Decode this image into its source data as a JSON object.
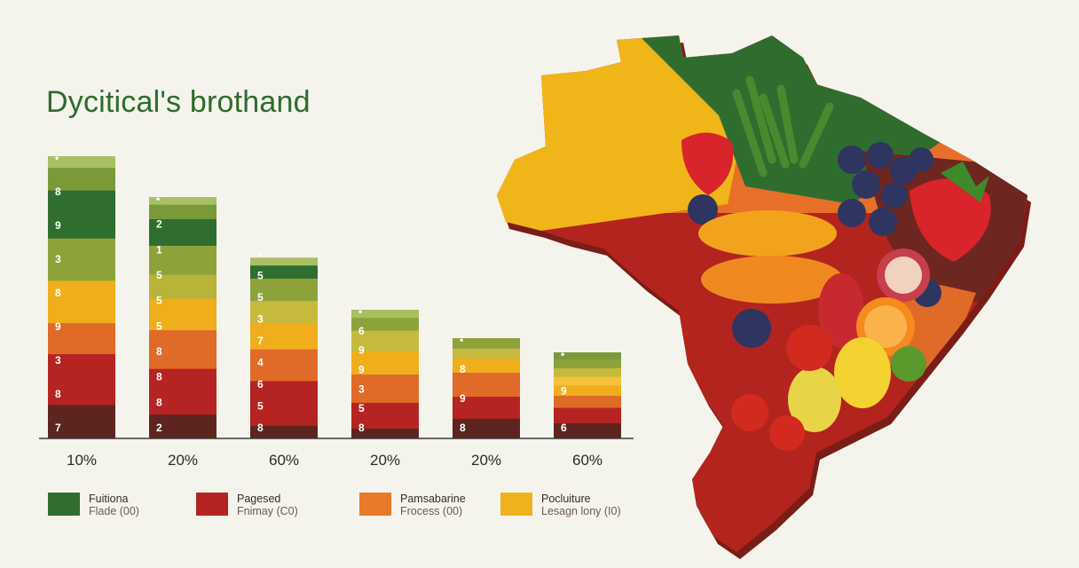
{
  "title": "Dycitical's brothand",
  "chart_data": {
    "type": "bar",
    "subtype": "stacked",
    "title": "Dycitical's brothand",
    "categories": [
      "10%",
      "20%",
      "60%",
      "20%",
      "20%",
      "60%"
    ],
    "bars": [
      {
        "label": "10%",
        "height": 318,
        "bands": [
          {
            "color": "#5c2520",
            "frac": 0.12
          },
          {
            "color": "#b52422",
            "frac": 0.18
          },
          {
            "color": "#e06a28",
            "frac": 0.11
          },
          {
            "color": "#f0ae1c",
            "frac": 0.15
          },
          {
            "color": "#8ea23c",
            "frac": 0.15
          },
          {
            "color": "#2f6e2f",
            "frac": 0.17
          },
          {
            "color": "#7a9a3a",
            "frac": 0.08
          },
          {
            "color": "#a8c062",
            "frac": 0.04
          }
        ],
        "marks": [
          "7",
          "8",
          "3",
          "9",
          "8",
          "3",
          "9",
          "8",
          "•"
        ]
      },
      {
        "label": "20%",
        "height": 272,
        "bands": [
          {
            "color": "#5c2520",
            "frac": 0.1
          },
          {
            "color": "#b52422",
            "frac": 0.19
          },
          {
            "color": "#e06a28",
            "frac": 0.16
          },
          {
            "color": "#f0ae1c",
            "frac": 0.13
          },
          {
            "color": "#b8b43a",
            "frac": 0.1
          },
          {
            "color": "#8ea23c",
            "frac": 0.12
          },
          {
            "color": "#2f6e2f",
            "frac": 0.11
          },
          {
            "color": "#7a9a3a",
            "frac": 0.06
          },
          {
            "color": "#a8c062",
            "frac": 0.03
          }
        ],
        "marks": [
          "2",
          "8",
          "8",
          "8",
          "5",
          "5",
          "5",
          "1",
          "2",
          "•"
        ]
      },
      {
        "label": "60%",
        "height": 210,
        "bands": [
          {
            "color": "#5c2520",
            "frac": 0.07
          },
          {
            "color": "#b52422",
            "frac": 0.24
          },
          {
            "color": "#e06a28",
            "frac": 0.17
          },
          {
            "color": "#f0ae1c",
            "frac": 0.14
          },
          {
            "color": "#c6ba3e",
            "frac": 0.12
          },
          {
            "color": "#8ea23c",
            "frac": 0.12
          },
          {
            "color": "#2f6e2f",
            "frac": 0.07
          },
          {
            "color": "#a8c062",
            "frac": 0.04
          }
        ],
        "marks": [
          "8",
          "5",
          "6",
          "4",
          "7",
          "3",
          "5",
          "5",
          "•"
        ]
      },
      {
        "label": "20%",
        "height": 145,
        "bands": [
          {
            "color": "#5c2520",
            "frac": 0.08
          },
          {
            "color": "#b52422",
            "frac": 0.2
          },
          {
            "color": "#e06a28",
            "frac": 0.22
          },
          {
            "color": "#f0ae1c",
            "frac": 0.18
          },
          {
            "color": "#c6ba3e",
            "frac": 0.16
          },
          {
            "color": "#8ea23c",
            "frac": 0.1
          },
          {
            "color": "#a8c062",
            "frac": 0.06
          }
        ],
        "marks": [
          "8",
          "5",
          "3",
          "9",
          "9",
          "6",
          "•"
        ]
      },
      {
        "label": "20%",
        "height": 113,
        "bands": [
          {
            "color": "#5c2520",
            "frac": 0.2
          },
          {
            "color": "#b52422",
            "frac": 0.22
          },
          {
            "color": "#e06a28",
            "frac": 0.24
          },
          {
            "color": "#f0ae1c",
            "frac": 0.14
          },
          {
            "color": "#c6ba3e",
            "frac": 0.1
          },
          {
            "color": "#8ea23c",
            "frac": 0.1
          }
        ],
        "marks": [
          "8",
          "9",
          "8",
          "•"
        ]
      },
      {
        "label": "60%",
        "height": 97,
        "bands": [
          {
            "color": "#5c2520",
            "frac": 0.18
          },
          {
            "color": "#b52422",
            "frac": 0.18
          },
          {
            "color": "#e06a28",
            "frac": 0.14
          },
          {
            "color": "#f0ae1c",
            "frac": 0.12
          },
          {
            "color": "#f5c23a",
            "frac": 0.1
          },
          {
            "color": "#c6ba3e",
            "frac": 0.1
          },
          {
            "color": "#8ea23c",
            "frac": 0.1
          },
          {
            "color": "#7a9a3a",
            "frac": 0.08
          }
        ],
        "marks": [
          "6",
          "9",
          "•"
        ]
      }
    ]
  },
  "legend": [
    {
      "color": "#2f6e2f",
      "name": "Fuitiona",
      "sub": "Flade (00)"
    },
    {
      "color": "#b52422",
      "name": "Pagesed",
      "sub": "Fnimay (C0)"
    },
    {
      "color": "#e87a2a",
      "name": "Pamsabarine",
      "sub": "Frocess (00)"
    },
    {
      "color": "#f0b21c",
      "name": "Pocluiture",
      "sub": "Lesagn lony (I0)"
    }
  ]
}
